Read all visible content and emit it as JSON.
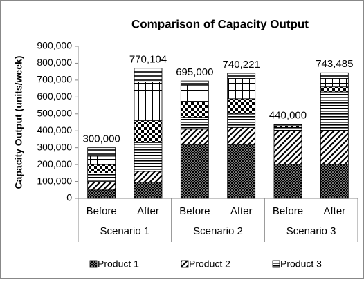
{
  "chart_data": {
    "type": "stacked_bar",
    "title": "Comparison of Capacity Output",
    "y_label": "Capacity Output (units/week)",
    "categories": [
      "Before",
      "After",
      "Before",
      "After",
      "Before",
      "After"
    ],
    "groups": [
      "Scenario 1",
      "Scenario 2",
      "Scenario 3"
    ],
    "series": [
      {
        "name": "Product 1",
        "color": "#000000",
        "pattern": "dots",
        "values": [
          50000,
          95000,
          320000,
          320000,
          200000,
          200000
        ]
      },
      {
        "name": "Product 2",
        "color": "#000000",
        "pattern": "diag",
        "values": [
          50000,
          65000,
          90000,
          100000,
          200000,
          200000
        ]
      },
      {
        "name": "Product 3",
        "color": "#000000",
        "pattern": "horiz",
        "values": [
          50000,
          170000,
          70000,
          80000,
          20000,
          230000
        ]
      },
      {
        "color": "#000000",
        "pattern": "checker",
        "values": [
          50000,
          130000,
          95000,
          90000,
          10000,
          30000
        ]
      },
      {
        "color": "#000000",
        "pattern": "grid",
        "values": [
          50000,
          230000,
          95000,
          120000,
          5000,
          50000
        ]
      },
      {
        "color": "#000000",
        "pattern": "hthick",
        "values": [
          50000,
          80104,
          25000,
          30221,
          5000,
          33485
        ]
      }
    ],
    "totals": [
      300000,
      770104,
      695000,
      740221,
      440000,
      743485
    ],
    "total_labels": [
      "300,000",
      "770,104",
      "695,000",
      "740,221",
      "440,000",
      "743,485"
    ],
    "ylim": [
      0,
      900000
    ],
    "yticks": [
      0,
      {
        "value": 100000,
        "label": "100,000"
      },
      {
        "value": 200000,
        "label": "200,000"
      },
      {
        "value": 300000,
        "label": "300,000"
      },
      {
        "value": 400000,
        "label": "400,000"
      },
      {
        "value": 500000,
        "label": "500,000"
      },
      {
        "value": 600000,
        "label": "600,000"
      },
      {
        "value": 700000,
        "label": "700,000"
      },
      {
        "value": 800000,
        "label": "800,000"
      },
      {
        "value": 900000,
        "label": "900,000"
      }
    ],
    "grid": false
  }
}
